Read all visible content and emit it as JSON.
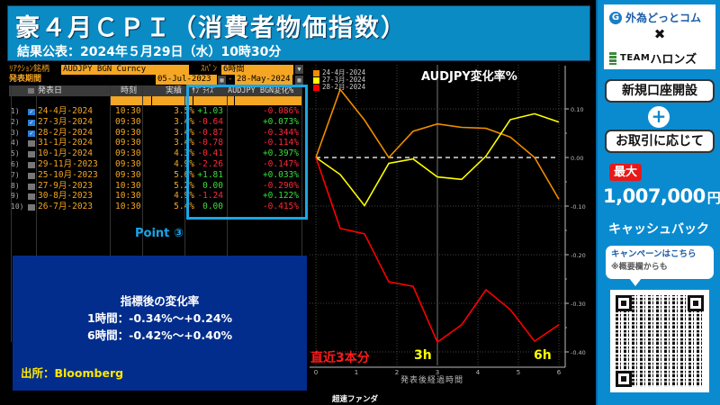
{
  "header": {
    "title": "豪４月ＣＰＩ（消費者物価指数）",
    "subtitle": "結果公表：2024年５月29日（水）10時30分"
  },
  "bloomberg_table": {
    "reaction_label": "ﾘｱｸｼｮﾝ銘柄",
    "reaction_value": "AUDJPY BGN Curncy",
    "span_label": "ｽﾊﾟﾝ",
    "span_value": "6時間",
    "period_label": "発表期間",
    "period_from": "05-Jul-2023",
    "period_to": "28-May-2024",
    "columns": [
      "発表日",
      "時刻",
      "実績",
      "ｻﾌﾟﾗｲｽﾞ",
      "AUDJPY BGN変化%"
    ],
    "rows": [
      {
        "num": "1)",
        "checked": true,
        "date": "24-4月-2024",
        "time": "10:30",
        "actual": "3.5%",
        "surprise": "+1.03",
        "change": "-0.086%"
      },
      {
        "num": "2)",
        "checked": true,
        "date": "27-3月-2024",
        "time": "09:30",
        "actual": "3.4%",
        "surprise": "-0.64",
        "change": "+0.073%"
      },
      {
        "num": "3)",
        "checked": true,
        "date": "28-2月-2024",
        "time": "09:30",
        "actual": "3.4%",
        "surprise": "-0.87",
        "change": "-0.344%"
      },
      {
        "num": "4)",
        "checked": false,
        "date": "31-1月-2024",
        "time": "09:30",
        "actual": "3.4%",
        "surprise": "-0.78",
        "change": "-0.114%"
      },
      {
        "num": "5)",
        "checked": false,
        "date": "10-1月-2024",
        "time": "09:30",
        "actual": "4.3%",
        "surprise": "-0.41",
        "change": "+0.397%"
      },
      {
        "num": "6)",
        "checked": false,
        "date": "29-11月-2023",
        "time": "09:30",
        "actual": "4.9%",
        "surprise": "-2.26",
        "change": "-0.147%"
      },
      {
        "num": "7)",
        "checked": false,
        "date": "25-10月-2023",
        "time": "09:30",
        "actual": "5.6%",
        "surprise": "+1.81",
        "change": "+0.033%"
      },
      {
        "num": "8)",
        "checked": false,
        "date": "27-9月-2023",
        "time": "10:30",
        "actual": "5.2%",
        "surprise": "0.00",
        "change": "-0.290%"
      },
      {
        "num": "9)",
        "checked": false,
        "date": "30-8月-2023",
        "time": "10:30",
        "actual": "4.9%",
        "surprise": "-1.24",
        "change": "+0.122%"
      },
      {
        "num": "10)",
        "checked": false,
        "date": "26-7月-2023",
        "time": "10:30",
        "actual": "5.4%",
        "surprise": "0.00",
        "change": "-0.415%"
      }
    ],
    "point_label": "Point ③"
  },
  "summary": {
    "title": "指標後の変化率",
    "line1": "1時間：-0.34%～+0.24%",
    "line2": "6時間：-0.42%～+0.40%",
    "source": "出所：Bloomberg"
  },
  "chart_data": {
    "type": "line",
    "title": "AUDJPY変化率%",
    "xlabel": "発表後経過時間",
    "ylabel": "",
    "x": [
      0,
      0.6,
      1.2,
      1.8,
      2.4,
      3.0,
      3.6,
      4.2,
      4.8,
      5.4,
      6.0
    ],
    "xticks": [
      0,
      1,
      2,
      3,
      4,
      5,
      6
    ],
    "yticks": [
      "0.10",
      "0.00",
      "-0.10",
      "-0.20",
      "-0.30",
      "-0.40"
    ],
    "ylim": [
      -0.43,
      0.15
    ],
    "xlim": [
      0,
      6
    ],
    "grid": true,
    "legend_position": "top-left",
    "series": [
      {
        "name": "24-4月-2024",
        "color": "#f08c00",
        "values": [
          0,
          0.14,
          0.077,
          0,
          0.054,
          0.069,
          0.062,
          0.06,
          0.042,
          0,
          -0.086
        ]
      },
      {
        "name": "27-3月-2024",
        "color": "#ffff00",
        "values": [
          0,
          -0.035,
          -0.099,
          -0.012,
          -0.003,
          -0.04,
          -0.045,
          0.003,
          0.078,
          0.09,
          0.073
        ]
      },
      {
        "name": "28-2月-2024",
        "color": "#ff0000",
        "values": [
          0,
          -0.146,
          -0.157,
          -0.256,
          -0.265,
          -0.38,
          -0.344,
          -0.272,
          -0.313,
          -0.378,
          -0.344
        ]
      }
    ],
    "annotations": [
      {
        "text": "直近3本分",
        "color": "#ff1a1a"
      },
      {
        "text": "3h",
        "color": "#ffff00"
      },
      {
        "text": "6h",
        "color": "#ffff00"
      }
    ]
  },
  "footer": {
    "brand": "超速ファンダ"
  },
  "promo": {
    "brand1": "外為どっとコム",
    "cross": "✖",
    "brand2_team": "TEAM",
    "brand2_name": "ハロンズ",
    "open_account": "新規口座開設",
    "plus": "+",
    "per_trade": "お取引に応じて",
    "max_label": "最大",
    "amount": "1,007,000",
    "currency": "円",
    "cashback": "キャッシュバック",
    "campaign_line1": "キャンペーンはこちら",
    "campaign_line2": "※概要欄からも"
  },
  "colors": {
    "header_bg": "#0a8bc4",
    "accent_blue": "#1aa7e6",
    "summary_bg": "#022d8c",
    "bbg_orange": "#f5a623",
    "positive": "#3ddc3d",
    "negative": "#ff2a3a"
  }
}
